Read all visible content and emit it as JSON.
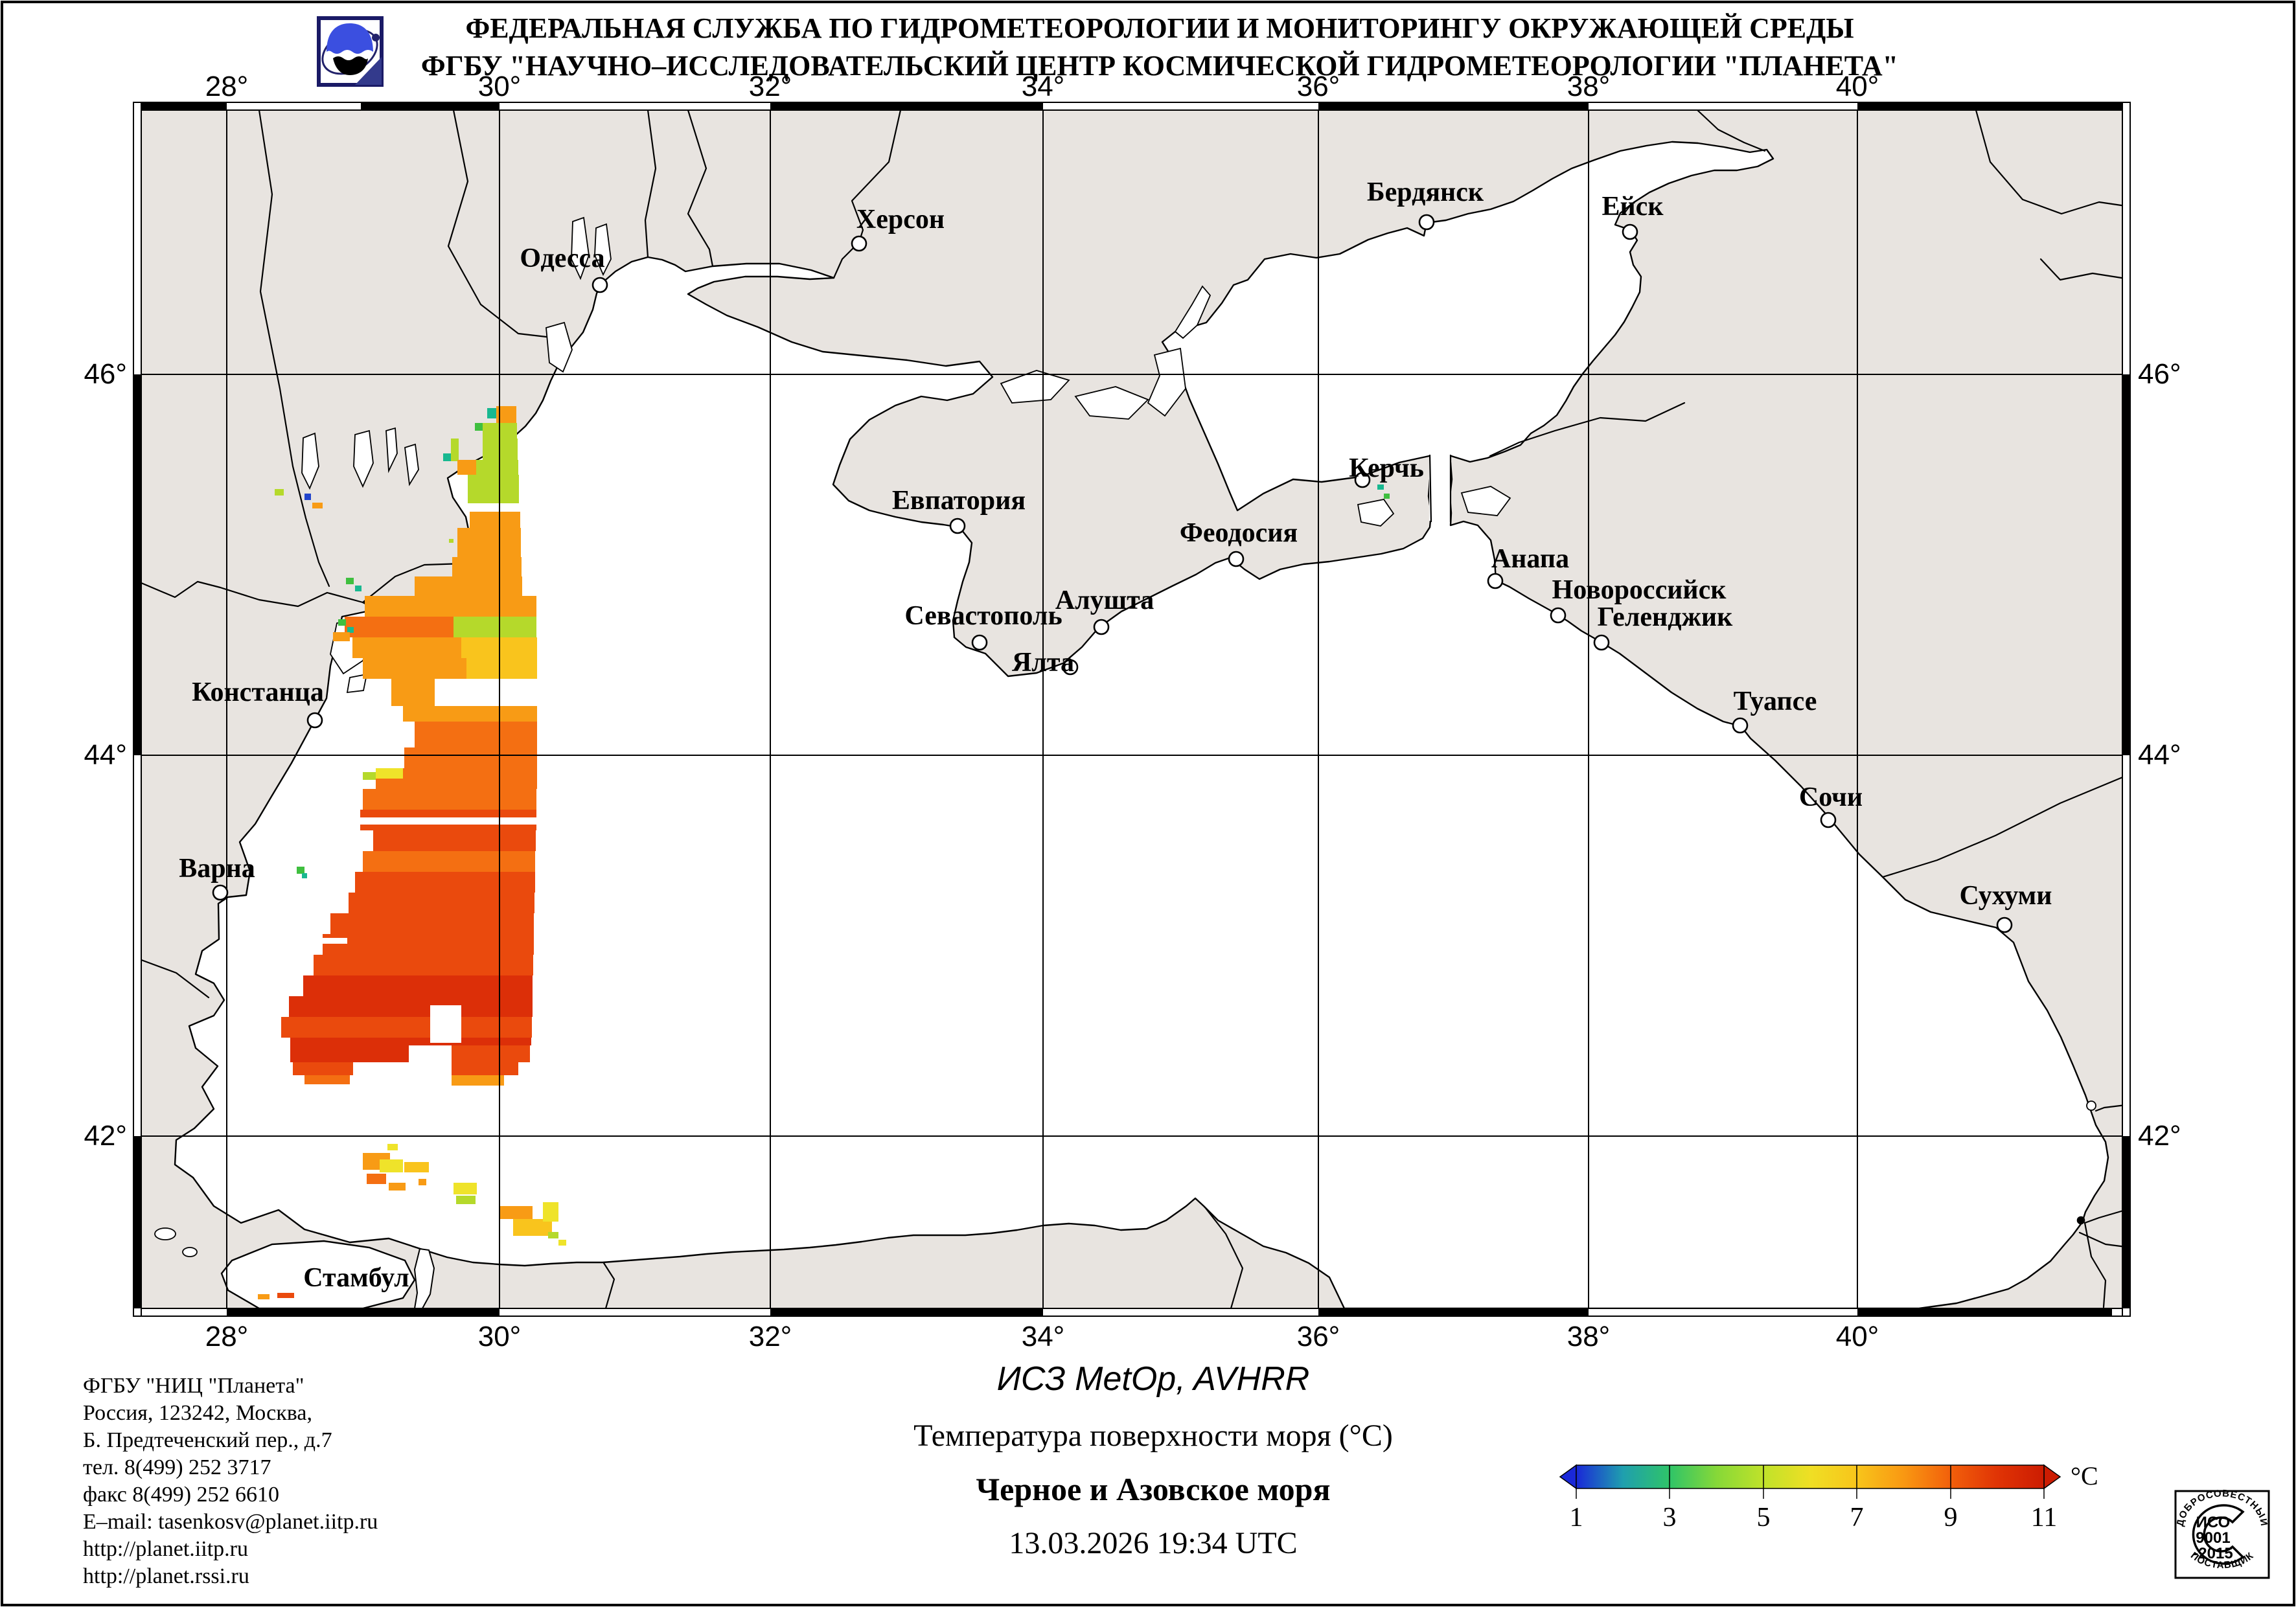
{
  "header": {
    "line1": "ФЕДЕРАЛЬНАЯ СЛУЖБА ПО ГИДРОМЕТЕОРОЛОГИИ И МОНИТОРИНГУ ОКРУЖАЮЩЕЙ СРЕДЫ",
    "line2": "ФГБУ \"НАУЧНО–ИССЛЕДОВАТЕЛЬСКИЙ ЦЕНТР КОСМИЧЕСКОЙ ГИДРОМЕТЕОРОЛОГИИ \"ПЛАНЕТА\""
  },
  "map": {
    "lon_labels": [
      "28°",
      "30°",
      "32°",
      "34°",
      "36°",
      "38°",
      "40°"
    ],
    "lat_labels": [
      "46°",
      "44°",
      "42°"
    ],
    "cities": [
      {
        "name": "Одесса"
      },
      {
        "name": "Херсон"
      },
      {
        "name": "Бердянск"
      },
      {
        "name": "Ейск"
      },
      {
        "name": "Евпатория"
      },
      {
        "name": "Керчь"
      },
      {
        "name": "Феодосия"
      },
      {
        "name": "Алушта"
      },
      {
        "name": "Севастополь"
      },
      {
        "name": "Ялта"
      },
      {
        "name": "Анапа"
      },
      {
        "name": "Новороссийск"
      },
      {
        "name": "Геленджик"
      },
      {
        "name": "Туапсе"
      },
      {
        "name": "Сочи"
      },
      {
        "name": "Сухуми"
      },
      {
        "name": "Констанца"
      },
      {
        "name": "Варна"
      },
      {
        "name": "Стамбул"
      }
    ]
  },
  "footer": {
    "org_lines": [
      "ФГБУ \"НИЦ \"Планета\"",
      "Россия, 123242, Москва,",
      "Б. Предтеченский пер., д.7",
      "тел. 8(499) 252 3717",
      "факс 8(499) 252 6610",
      "E–mail: tasenkosv@planet.iitp.ru",
      "http://planet.iitp.ru",
      "http://planet.rssi.ru"
    ],
    "satellite": "ИСЗ MetOp, AVHRR",
    "product": "Температура поверхности моря (°C)",
    "region": "Черное и Азовское моря",
    "datetime": "13.03.2026 19:34 UTC"
  },
  "colorbar": {
    "unit": "°C",
    "ticks": [
      "1",
      "3",
      "5",
      "7",
      "9",
      "11"
    ],
    "gradient": [
      "#1a28d8",
      "#1f9fae",
      "#2fc468",
      "#86d838",
      "#c0e22a",
      "#efdf24",
      "#f8c51b",
      "#f99812",
      "#f2600b",
      "#e03405",
      "#cc1c02"
    ]
  },
  "iso_badge": {
    "arc_top": "ДОБРОСОВЕСТНЫЙ",
    "arc_bottom": "ПОСТАВЩИК",
    "line1": "ИСО",
    "line2": "9001",
    "line3": "-2015"
  },
  "sst": {
    "palette": {
      "B": "#2244cc",
      "T": "#18b890",
      "G": "#3fbf3f",
      "YG": "#b5d92b",
      "Y": "#efe32a",
      "YO": "#f9c41d",
      "O": "#f89b15",
      "DO": "#f46f12",
      "RO": "#ea4a0d",
      "R": "#dc2f08"
    },
    "bands": [
      [
        627,
        26,
        766,
        797,
        "O"
      ],
      [
        630,
        16,
        752,
        766,
        "T"
      ],
      [
        653,
        24,
        745,
        798,
        "YG"
      ],
      [
        653,
        12,
        733,
        745,
        "G"
      ],
      [
        677,
        33,
        745,
        799,
        "YG"
      ],
      [
        677,
        35,
        696,
        708,
        "YG"
      ],
      [
        700,
        12,
        684,
        696,
        "T"
      ],
      [
        710,
        23,
        706,
        735,
        "O"
      ],
      [
        710,
        23,
        735,
        800,
        "YG"
      ],
      [
        733,
        44,
        722,
        801,
        "YG"
      ],
      [
        790,
        25,
        725,
        803,
        "O"
      ],
      [
        815,
        45,
        706,
        804,
        "O"
      ],
      [
        832,
        6,
        693,
        700,
        "YG"
      ],
      [
        860,
        30,
        698,
        805,
        "O"
      ],
      [
        890,
        30,
        640,
        806,
        "O"
      ],
      [
        920,
        32,
        563,
        828,
        "O"
      ],
      [
        952,
        32,
        532,
        700,
        "DO"
      ],
      [
        952,
        32,
        700,
        828,
        "YG"
      ],
      [
        984,
        32,
        544,
        712,
        "O"
      ],
      [
        984,
        32,
        712,
        829,
        "YO"
      ],
      [
        1016,
        32,
        560,
        720,
        "O"
      ],
      [
        1016,
        32,
        720,
        829,
        "YO"
      ],
      [
        1048,
        42,
        604,
        671,
        "O"
      ],
      [
        1090,
        24,
        622,
        829,
        "O"
      ],
      [
        1114,
        40,
        640,
        829,
        "DO"
      ],
      [
        1154,
        32,
        624,
        829,
        "DO"
      ],
      [
        1186,
        32,
        580,
        829,
        "DO"
      ],
      [
        1186,
        16,
        580,
        622,
        "Y"
      ],
      [
        1192,
        12,
        560,
        580,
        "YG"
      ],
      [
        1218,
        32,
        560,
        828,
        "DO"
      ],
      [
        1250,
        32,
        556,
        828,
        "RO"
      ],
      [
        1282,
        32,
        576,
        827,
        "RO"
      ],
      [
        1314,
        32,
        560,
        826,
        "DO"
      ],
      [
        1346,
        32,
        548,
        826,
        "RO"
      ],
      [
        1378,
        32,
        538,
        825,
        "RO"
      ],
      [
        1410,
        32,
        510,
        824,
        "RO"
      ],
      [
        1442,
        32,
        498,
        824,
        "RO"
      ],
      [
        1474,
        32,
        484,
        823,
        "RO"
      ],
      [
        1506,
        32,
        468,
        822,
        "R"
      ],
      [
        1538,
        32,
        446,
        822,
        "R"
      ],
      [
        1570,
        32,
        434,
        821,
        "RO"
      ],
      [
        1602,
        12,
        448,
        820,
        "R"
      ],
      [
        1614,
        26,
        448,
        631,
        "R"
      ],
      [
        1614,
        26,
        697,
        818,
        "RO"
      ],
      [
        1640,
        20,
        452,
        545,
        "RO"
      ],
      [
        1640,
        20,
        697,
        800,
        "RO"
      ],
      [
        1660,
        14,
        470,
        540,
        "DO"
      ],
      [
        1660,
        16,
        697,
        778,
        "O"
      ]
    ],
    "patches": [
      [
        424,
        755,
        14,
        10,
        "YG"
      ],
      [
        470,
        762,
        10,
        10,
        "B"
      ],
      [
        482,
        776,
        16,
        9,
        "O"
      ],
      [
        534,
        892,
        12,
        10,
        "G"
      ],
      [
        548,
        904,
        10,
        9,
        "T"
      ],
      [
        522,
        956,
        12,
        10,
        "G"
      ],
      [
        536,
        968,
        10,
        9,
        "T"
      ],
      [
        514,
        976,
        26,
        14,
        "O"
      ],
      [
        458,
        1338,
        12,
        11,
        "G"
      ],
      [
        466,
        1348,
        8,
        8,
        "T"
      ],
      [
        2126,
        748,
        10,
        8,
        "T"
      ],
      [
        2136,
        762,
        9,
        8,
        "G"
      ],
      [
        598,
        1766,
        16,
        10,
        "Y"
      ],
      [
        560,
        1780,
        42,
        26,
        "O"
      ],
      [
        586,
        1790,
        36,
        20,
        "Y"
      ],
      [
        566,
        1812,
        30,
        16,
        "DO"
      ],
      [
        600,
        1826,
        26,
        12,
        "O"
      ],
      [
        624,
        1794,
        38,
        16,
        "YO"
      ],
      [
        646,
        1820,
        12,
        10,
        "O"
      ],
      [
        700,
        1826,
        36,
        18,
        "Y"
      ],
      [
        704,
        1846,
        30,
        13,
        "YG"
      ],
      [
        770,
        1862,
        52,
        20,
        "O"
      ],
      [
        792,
        1882,
        60,
        26,
        "YO"
      ],
      [
        838,
        1856,
        24,
        30,
        "Y"
      ],
      [
        846,
        1902,
        16,
        10,
        "YG"
      ],
      [
        862,
        1914,
        12,
        9,
        "Y"
      ],
      [
        398,
        1998,
        18,
        8,
        "O"
      ],
      [
        428,
        1996,
        26,
        8,
        "RO"
      ]
    ],
    "clouds": [
      [
        671,
        1048,
        158,
        42
      ],
      [
        555,
        1262,
        275,
        11
      ],
      [
        484,
        1448,
        52,
        9
      ],
      [
        664,
        1552,
        48,
        58
      ],
      [
        722,
        777,
        82,
        13
      ]
    ]
  }
}
